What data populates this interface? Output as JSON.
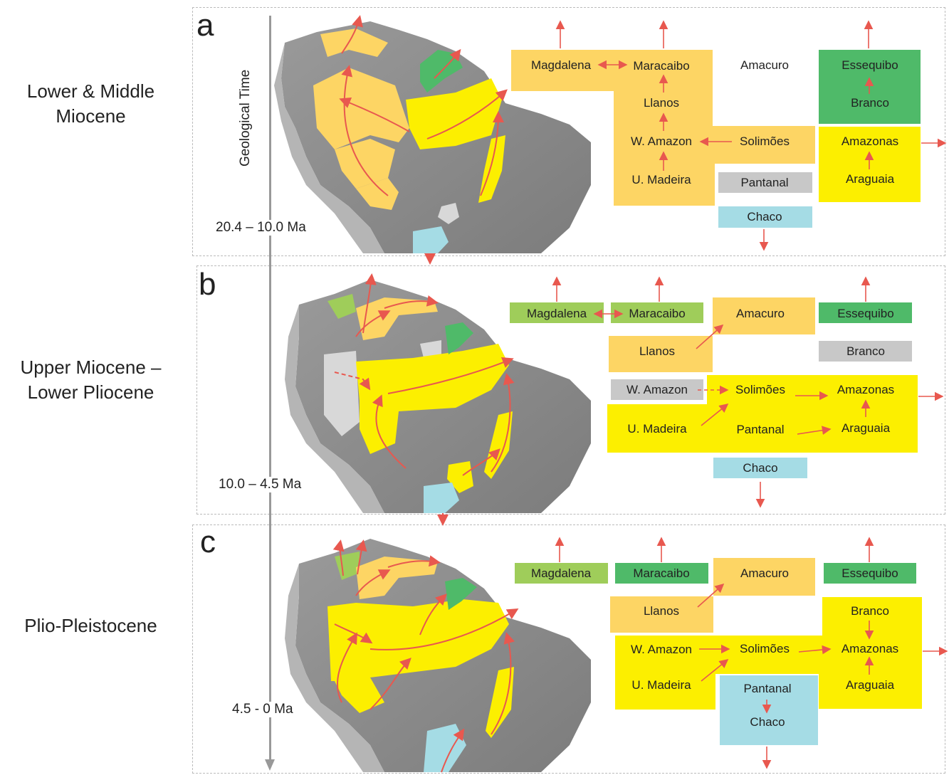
{
  "axis_title": "Geological Time",
  "colors": {
    "orange": "#fdd564",
    "yellow": "#fcef00",
    "dark_green": "#4fba69",
    "light_green": "#9fcd5a",
    "gray_basin": "#c8c8c8",
    "light_blue": "#a5dce5",
    "arrow": "#e8584f",
    "land": "#8a8a8a"
  },
  "panels": [
    {
      "letter": "a",
      "era": [
        "Lower & Middle",
        "Miocene"
      ],
      "time": "20.4 – 10.0 Ma",
      "nodes": {
        "magdalena": "Magdalena",
        "maracaibo": "Maracaibo",
        "amacuro": "Amacuro",
        "essequibo": "Essequibo",
        "branco": "Branco",
        "llanos": "Llanos",
        "w_amazon": "W. Amazon",
        "solimoes": "Solimões",
        "amazonas": "Amazonas",
        "u_madeira": "U. Madeira",
        "pantanal": "Pantanal",
        "araguaia": "Araguaia",
        "chaco": "Chaco"
      }
    },
    {
      "letter": "b",
      "era": [
        "Upper Miocene –",
        "Lower Pliocene"
      ],
      "time": "10.0 – 4.5 Ma",
      "nodes": {
        "magdalena": "Magdalena",
        "maracaibo": "Maracaibo",
        "amacuro": "Amacuro",
        "essequibo": "Essequibo",
        "llanos": "Llanos",
        "branco": "Branco",
        "w_amazon": "W. Amazon",
        "solimoes": "Solimões",
        "amazonas": "Amazonas",
        "u_madeira": "U. Madeira",
        "pantanal": "Pantanal",
        "araguaia": "Araguaia",
        "chaco": "Chaco"
      }
    },
    {
      "letter": "c",
      "era": [
        "Plio-Pleistocene"
      ],
      "time": "4.5 - 0 Ma",
      "nodes": {
        "magdalena": "Magdalena",
        "maracaibo": "Maracaibo",
        "amacuro": "Amacuro",
        "essequibo": "Essequibo",
        "llanos": "Llanos",
        "branco": "Branco",
        "w_amazon": "W. Amazon",
        "solimoes": "Solimões",
        "amazonas": "Amazonas",
        "u_madeira": "U. Madeira",
        "araguaia": "Araguaia",
        "pantanal": "Pantanal",
        "chaco": "Chaco"
      }
    }
  ]
}
